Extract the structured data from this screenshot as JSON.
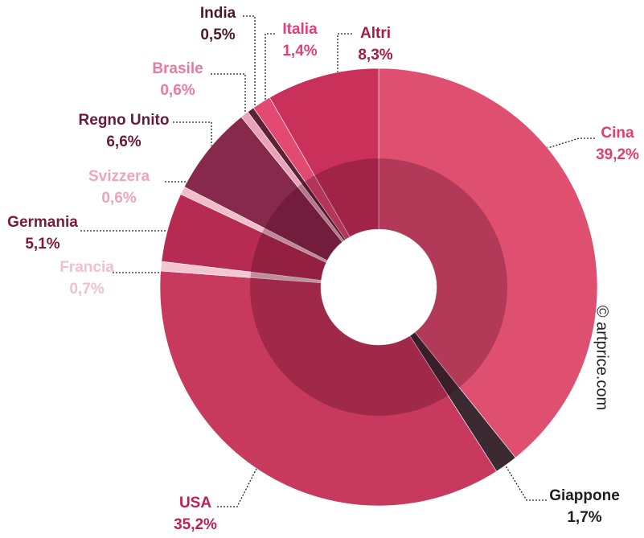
{
  "chart_data": {
    "type": "donut",
    "categories": [
      "Cina",
      "Giappone",
      "USA",
      "Francia",
      "Germania",
      "Svizzera",
      "Regno Unito",
      "Brasile",
      "India",
      "Italia",
      "Altri"
    ],
    "values": [
      39.2,
      1.7,
      35.2,
      0.7,
      5.1,
      0.6,
      6.6,
      0.6,
      0.5,
      1.4,
      8.3
    ],
    "value_labels": [
      "39,2%",
      "1,7%",
      "35,2%",
      "0,7%",
      "5,1%",
      "0,6%",
      "6,6%",
      "0,6%",
      "0,5%",
      "1,4%",
      "8,3%"
    ],
    "colors": [
      "#df4f70",
      "#3c2a32",
      "#c73a5e",
      "#f3c6d1",
      "#b52b51",
      "#f2bccb",
      "#87294a",
      "#eaa2b9",
      "#5b2233",
      "#e24a72",
      "#c9315a"
    ],
    "label_colors": [
      "#e03e69",
      "#1e1e1e",
      "#c11f50",
      "#f2bfcc",
      "#7a1a3a",
      "#f0a3bd",
      "#6a1a38",
      "#e67aa0",
      "#4a1a2a",
      "#e0407a",
      "#a41c44"
    ],
    "annotation": "© artprice.com"
  }
}
